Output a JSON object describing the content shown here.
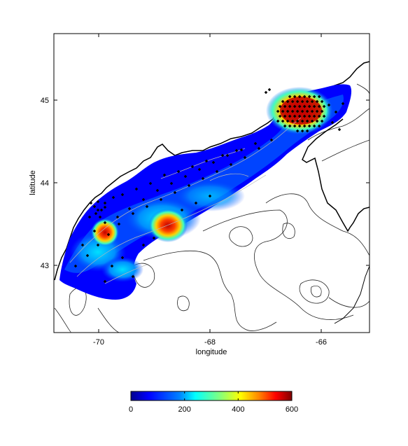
{
  "figure": {
    "x_label": "longitude",
    "y_label": "latitude",
    "x_ticks": [
      "-70",
      "-68",
      "-66"
    ],
    "y_ticks": [
      "45",
      "44",
      "43"
    ]
  },
  "colorbar": {
    "ticks": [
      "0",
      "200",
      "400",
      "600"
    ],
    "min": 0,
    "max": 600,
    "colormap": [
      "#00008f",
      "#0000ff",
      "#0080ff",
      "#00ffff",
      "#80ff80",
      "#ffff00",
      "#ff8000",
      "#ff0000",
      "#800000"
    ]
  },
  "map_extent": {
    "lon": [
      -70.8,
      -65.2
    ],
    "lat": [
      42.2,
      45.8
    ]
  },
  "colors": {
    "land_outline": "#000000",
    "bathymetry_contour": "#333333",
    "station_marker": "#000000"
  }
}
